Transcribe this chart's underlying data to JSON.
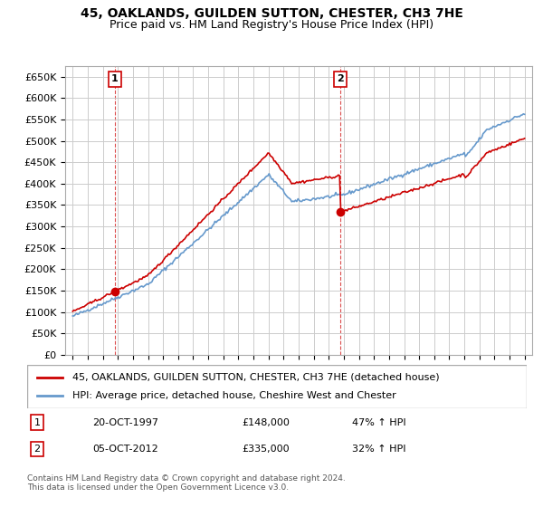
{
  "title1": "45, OAKLANDS, GUILDEN SUTTON, CHESTER, CH3 7HE",
  "title2": "Price paid vs. HM Land Registry's House Price Index (HPI)",
  "legend1": "45, OAKLANDS, GUILDEN SUTTON, CHESTER, CH3 7HE (detached house)",
  "legend2": "HPI: Average price, detached house, Cheshire West and Chester",
  "footer": "Contains HM Land Registry data © Crown copyright and database right 2024.\nThis data is licensed under the Open Government Licence v3.0.",
  "sale1_label": "1",
  "sale1_date": "20-OCT-1997",
  "sale1_price": "£148,000",
  "sale1_hpi": "47% ↑ HPI",
  "sale2_label": "2",
  "sale2_date": "05-OCT-2012",
  "sale2_price": "£335,000",
  "sale2_hpi": "32% ↑ HPI",
  "sale1_x": 1997.8,
  "sale1_y": 148000,
  "sale2_x": 2012.75,
  "sale2_y": 335000,
  "vline1_x": 1997.8,
  "vline2_x": 2012.75,
  "ylim": [
    0,
    675000
  ],
  "xlim_start": 1994.5,
  "xlim_end": 2025.5,
  "yticks": [
    0,
    50000,
    100000,
    150000,
    200000,
    250000,
    300000,
    350000,
    400000,
    450000,
    500000,
    550000,
    600000,
    650000
  ],
  "ytick_labels": [
    "£0",
    "£50K",
    "£100K",
    "£150K",
    "£200K",
    "£250K",
    "£300K",
    "£350K",
    "£400K",
    "£450K",
    "£500K",
    "£550K",
    "£600K",
    "£650K"
  ],
  "xticks": [
    1995,
    1996,
    1997,
    1998,
    1999,
    2000,
    2001,
    2002,
    2003,
    2004,
    2005,
    2006,
    2007,
    2008,
    2009,
    2010,
    2011,
    2012,
    2013,
    2014,
    2015,
    2016,
    2017,
    2018,
    2019,
    2020,
    2021,
    2022,
    2023,
    2024,
    2025
  ],
  "line_color_red": "#cc0000",
  "line_color_blue": "#6699cc",
  "vline_color": "#cc0000",
  "marker_color": "#cc0000",
  "background_color": "#ffffff",
  "grid_color": "#cccccc"
}
